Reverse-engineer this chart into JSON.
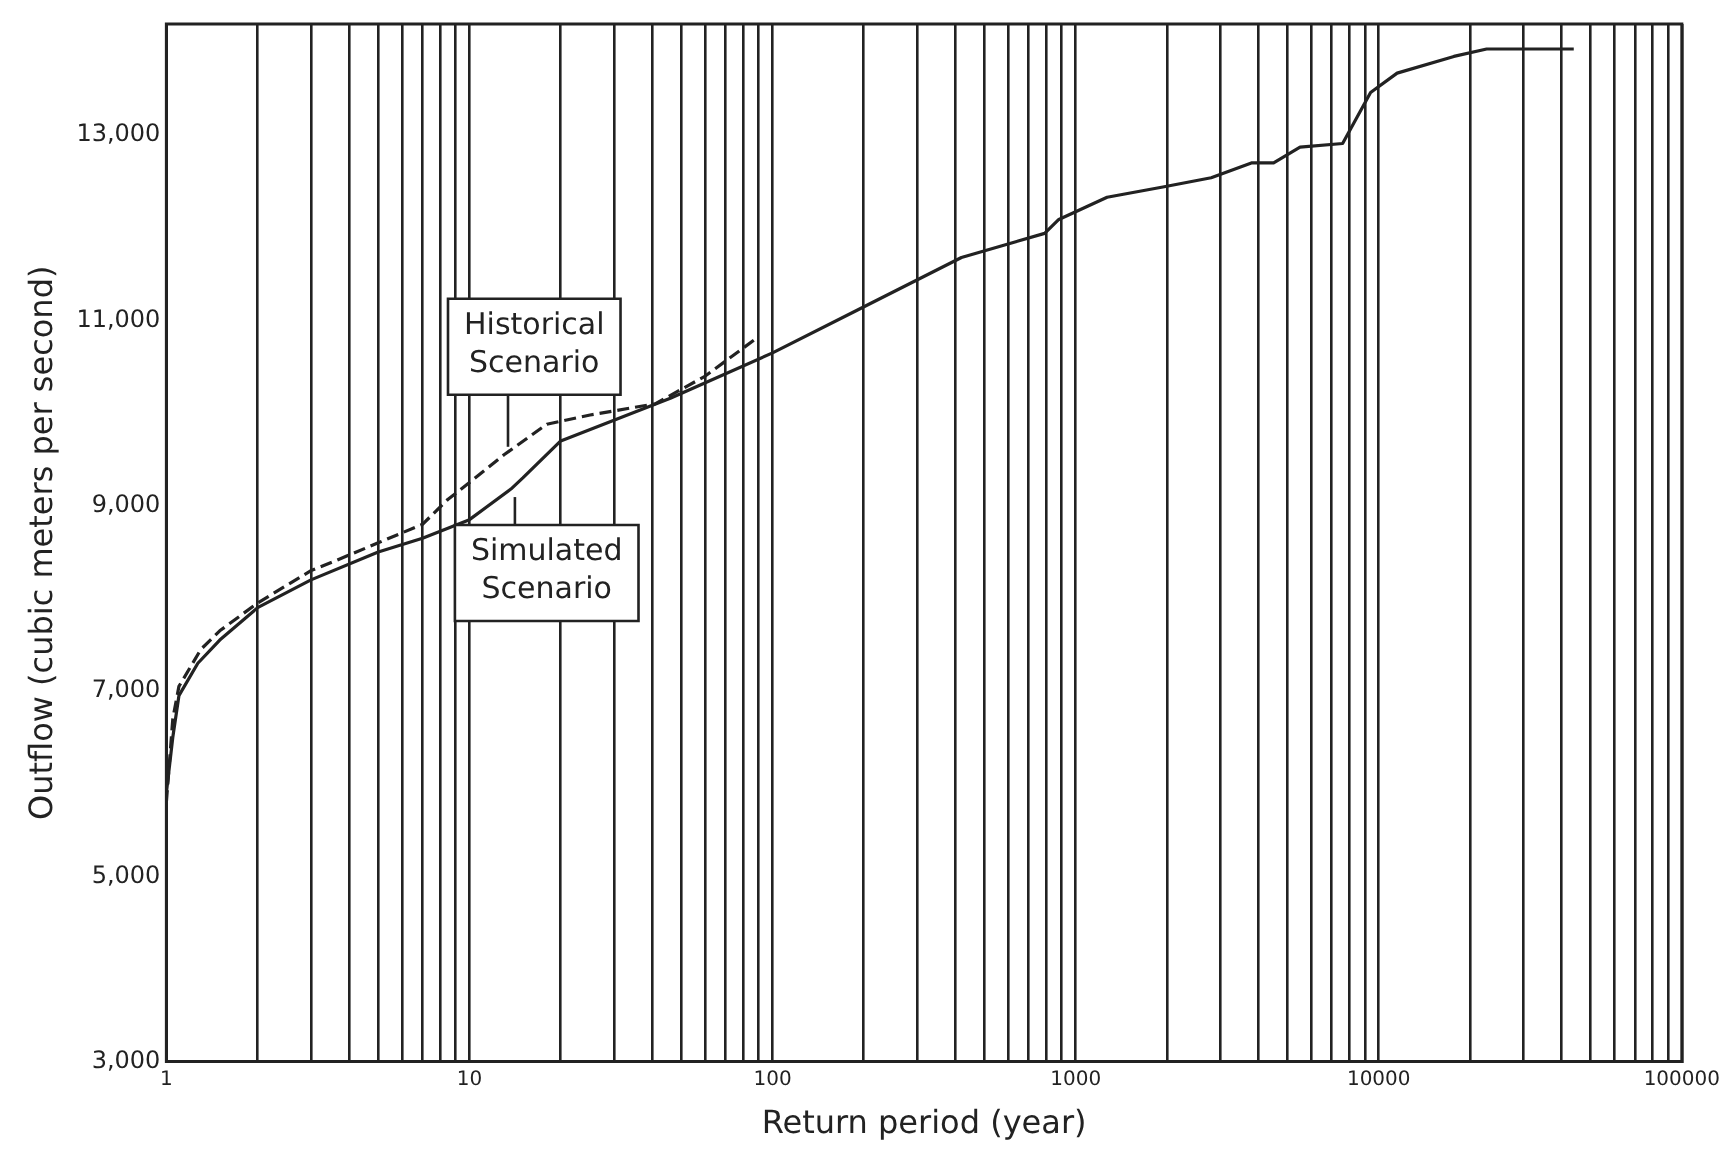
{
  "chart_data": {
    "type": "line",
    "xlabel": "Return period (year)",
    "ylabel": "Outflow (cubic meters per second)",
    "log": "x",
    "grid": "x",
    "legend": "center",
    "marker": "none",
    "xlim": [
      1,
      100000
    ],
    "ylim": [
      3000,
      14200
    ],
    "xticks": [
      1,
      {
        "value": 2,
        "label": null
      },
      {
        "value": 3,
        "label": null
      },
      {
        "value": 4,
        "label": null
      },
      {
        "value": 5,
        "label": null
      },
      {
        "value": 6,
        "label": null
      },
      {
        "value": 7,
        "label": null
      },
      {
        "value": 8,
        "label": null
      },
      {
        "value": 9,
        "label": null
      },
      10,
      {
        "value": 20,
        "label": null
      },
      {
        "value": 30,
        "label": null
      },
      {
        "value": 40,
        "label": null
      },
      {
        "value": 50,
        "label": null
      },
      {
        "value": 60,
        "label": null
      },
      {
        "value": 70,
        "label": null
      },
      {
        "value": 80,
        "label": null
      },
      {
        "value": 90,
        "label": null
      },
      100,
      {
        "value": 200,
        "label": null
      },
      {
        "value": 300,
        "label": null
      },
      {
        "value": 400,
        "label": null
      },
      {
        "value": 500,
        "label": null
      },
      {
        "value": 600,
        "label": null
      },
      {
        "value": 700,
        "label": null
      },
      {
        "value": 800,
        "label": null
      },
      {
        "value": 900,
        "label": null
      },
      1000,
      {
        "value": 2000,
        "label": null
      },
      {
        "value": 3000,
        "label": null
      },
      {
        "value": 4000,
        "label": null
      },
      {
        "value": 5000,
        "label": null
      },
      {
        "value": 6000,
        "label": null
      },
      {
        "value": 7000,
        "label": null
      },
      {
        "value": 8000,
        "label": null
      },
      {
        "value": 9000,
        "label": null
      },
      10000,
      {
        "value": 20000,
        "label": null
      },
      {
        "value": 30000,
        "label": null
      },
      {
        "value": 40000,
        "label": null
      },
      {
        "value": 50000,
        "label": null
      },
      {
        "value": 60000,
        "label": null
      },
      {
        "value": 70000,
        "label": null
      },
      {
        "value": 80000,
        "label": null
      },
      {
        "value": 90000,
        "label": null
      },
      100000
    ],
    "yticks": [
      {
        "value": 3000,
        "label": "3,000"
      },
      {
        "value": 5000,
        "label": "5,000"
      },
      {
        "value": 7000,
        "label": "7,000"
      },
      {
        "value": 9000,
        "label": "9,000"
      },
      {
        "value": 11000,
        "label": "11,000"
      },
      {
        "value": 13000,
        "label": "13,000"
      }
    ],
    "series": [
      {
        "name": "Historical Scenario",
        "color": "#222222",
        "line_style": "dashed",
        "x": [
          1,
          1.05,
          1.1,
          1.3,
          1.5,
          2,
          3,
          3.7,
          5,
          7,
          8.5,
          10,
          13,
          18,
          25,
          41,
          60,
          87
        ],
        "values": [
          5800,
          6700,
          7050,
          7450,
          7650,
          7950,
          8300,
          8420,
          8600,
          8800,
          9070,
          9250,
          9550,
          9880,
          9980,
          10100,
          10400,
          10790
        ]
      },
      {
        "name": "Simulated Scenario",
        "color": "#222222",
        "line_style": "solid",
        "x": [
          1,
          1.05,
          1.1,
          1.27,
          1.5,
          2,
          3,
          5,
          7,
          10,
          13.7,
          15,
          20,
          46,
          100,
          190,
          420,
          790,
          880,
          1270,
          1940,
          2800,
          3800,
          4500,
          5500,
          7600,
          9400,
          11500,
          17700,
          22700,
          44000
        ],
        "values": [
          5900,
          6500,
          6950,
          7300,
          7550,
          7900,
          8200,
          8500,
          8650,
          8850,
          9180,
          9300,
          9700,
          10160,
          10650,
          11110,
          11680,
          11940,
          12090,
          12330,
          12440,
          12540,
          12700,
          12700,
          12870,
          12910,
          13460,
          13670,
          13850,
          13930,
          13930
        ]
      }
    ]
  }
}
